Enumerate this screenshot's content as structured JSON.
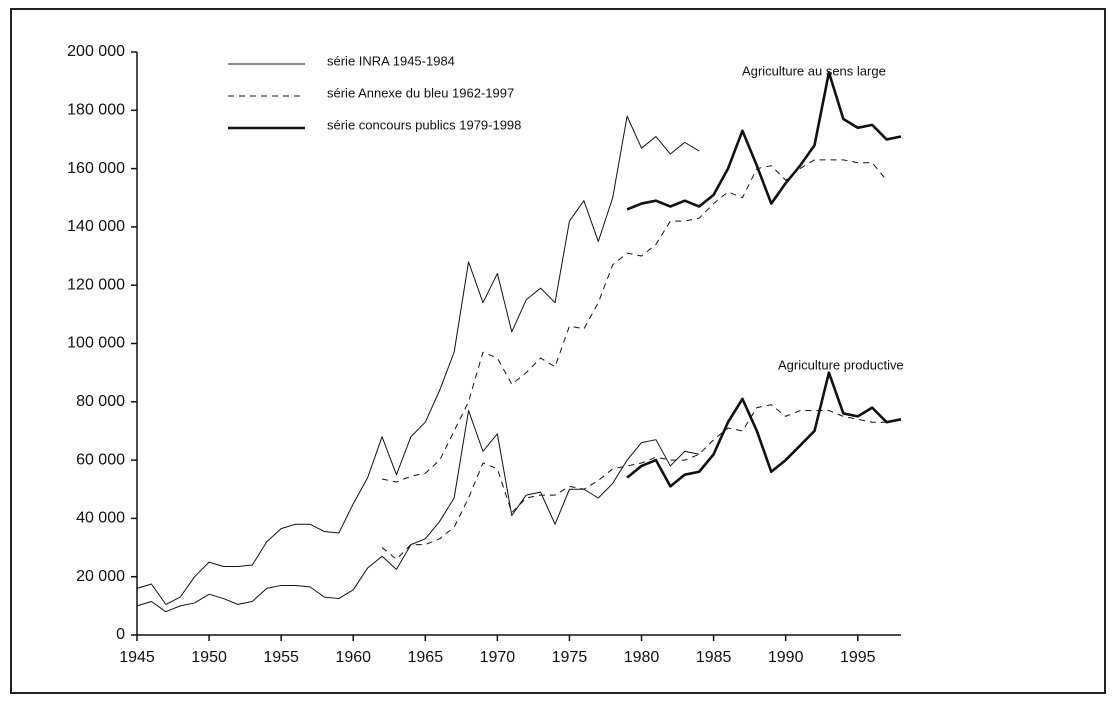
{
  "chart_data": {
    "type": "line",
    "x": [
      1945,
      1946,
      1947,
      1948,
      1949,
      1950,
      1951,
      1952,
      1953,
      1954,
      1955,
      1956,
      1957,
      1958,
      1959,
      1960,
      1961,
      1962,
      1963,
      1964,
      1965,
      1966,
      1967,
      1968,
      1969,
      1970,
      1971,
      1972,
      1973,
      1974,
      1975,
      1976,
      1977,
      1978,
      1979,
      1980,
      1981,
      1982,
      1983,
      1984,
      1985,
      1986,
      1987,
      1988,
      1989,
      1990,
      1991,
      1992,
      1993,
      1994,
      1995,
      1996,
      1997,
      1998
    ],
    "xlim": [
      1945,
      1998
    ],
    "xticks": [
      1945,
      1950,
      1955,
      1960,
      1965,
      1970,
      1975,
      1980,
      1985,
      1990,
      1995
    ],
    "ylim": [
      0,
      200000
    ],
    "yticks": [
      0,
      {
        "value": 20000,
        "label": "20 000"
      },
      {
        "value": 40000,
        "label": "40 000"
      },
      {
        "value": 60000,
        "label": "60 000"
      },
      {
        "value": 80000,
        "label": "80 000"
      },
      {
        "value": 100000,
        "label": "100 000"
      },
      {
        "value": 120000,
        "label": "120 000"
      },
      {
        "value": 140000,
        "label": "140 000"
      },
      {
        "value": 160000,
        "label": "160 000"
      },
      {
        "value": 180000,
        "label": "180 000"
      },
      {
        "value": 200000,
        "label": "200 000"
      }
    ],
    "color": "#111111",
    "legend": [
      {
        "name": "série INRA 1945-1984",
        "stroke_width": 1,
        "dash": "none"
      },
      {
        "name": "série Annexe du bleu 1962-1997",
        "stroke_width": 1,
        "dash": "6 5"
      },
      {
        "name": "série concours publics 1979-1998",
        "stroke_width": 2.6,
        "dash": "none"
      }
    ],
    "groups": [
      {
        "label": "Agriculture au sens large",
        "series": [
          {
            "values": [
              16000,
              17500,
              10500,
              13000,
              20000,
              25000,
              23500,
              23500,
              24000,
              32000,
              36500,
              38000,
              38000,
              35500,
              35000,
              45000,
              54000,
              68000,
              55000,
              68000,
              73000,
              84000,
              97000,
              128000,
              114000,
              124000,
              104000,
              115000,
              119000,
              114000,
              142000,
              149000,
              135000,
              150000,
              178000,
              167000,
              171000,
              165000,
              169000,
              166000,
              null,
              null,
              null,
              null,
              null,
              null,
              null,
              null,
              null,
              null,
              null,
              null,
              null,
              null
            ]
          },
          {
            "values": [
              null,
              null,
              null,
              null,
              null,
              null,
              null,
              null,
              null,
              null,
              null,
              null,
              null,
              null,
              null,
              null,
              null,
              53500,
              52500,
              54500,
              55500,
              60000,
              70000,
              80000,
              97000,
              95000,
              86000,
              90000,
              95000,
              92000,
              106000,
              105000,
              114000,
              127000,
              131000,
              130000,
              134000,
              142000,
              142000,
              143000,
              148000,
              152000,
              150000,
              160000,
              161000,
              156000,
              160000,
              163000,
              163000,
              163000,
              162000,
              162000,
              156000,
              null
            ]
          },
          {
            "values": [
              null,
              null,
              null,
              null,
              null,
              null,
              null,
              null,
              null,
              null,
              null,
              null,
              null,
              null,
              null,
              null,
              null,
              null,
              null,
              null,
              null,
              null,
              null,
              null,
              null,
              null,
              null,
              null,
              null,
              null,
              null,
              null,
              null,
              null,
              146000,
              148000,
              149000,
              147000,
              149000,
              147000,
              151000,
              160000,
              173000,
              161000,
              148000,
              155000,
              161000,
              168000,
              193000,
              177000,
              174000,
              175000,
              170000,
              171000
            ]
          }
        ]
      },
      {
        "label": "Agriculture productive",
        "series": [
          {
            "values": [
              10000,
              11500,
              8000,
              10000,
              11000,
              14000,
              12500,
              10500,
              11500,
              16000,
              17000,
              17000,
              16500,
              13000,
              12500,
              15500,
              23000,
              27000,
              22500,
              31000,
              33000,
              39000,
              47000,
              77000,
              63000,
              69000,
              41000,
              48000,
              49000,
              38000,
              50000,
              50000,
              47000,
              52000,
              60000,
              66000,
              67000,
              58000,
              63000,
              62000,
              null,
              null,
              null,
              null,
              null,
              null,
              null,
              null,
              null,
              null,
              null,
              null,
              null,
              null
            ]
          },
          {
            "values": [
              null,
              null,
              null,
              null,
              null,
              null,
              null,
              null,
              null,
              null,
              null,
              null,
              null,
              null,
              null,
              null,
              null,
              30000,
              26000,
              31000,
              31000,
              33000,
              37000,
              47000,
              59000,
              57000,
              42000,
              47000,
              48000,
              48000,
              51000,
              50000,
              53000,
              57000,
              58000,
              59000,
              61000,
              60000,
              60000,
              62000,
              67000,
              71000,
              70000,
              78000,
              79000,
              75000,
              77000,
              77000,
              77000,
              75000,
              74000,
              73000,
              73000,
              null
            ]
          },
          {
            "values": [
              null,
              null,
              null,
              null,
              null,
              null,
              null,
              null,
              null,
              null,
              null,
              null,
              null,
              null,
              null,
              null,
              null,
              null,
              null,
              null,
              null,
              null,
              null,
              null,
              null,
              null,
              null,
              null,
              null,
              null,
              null,
              null,
              null,
              null,
              54000,
              58000,
              60000,
              51000,
              55000,
              56000,
              62000,
              73000,
              81000,
              70000,
              56000,
              60000,
              65000,
              70000,
              90000,
              76000,
              75000,
              78000,
              73000,
              74000
            ]
          }
        ]
      }
    ]
  }
}
